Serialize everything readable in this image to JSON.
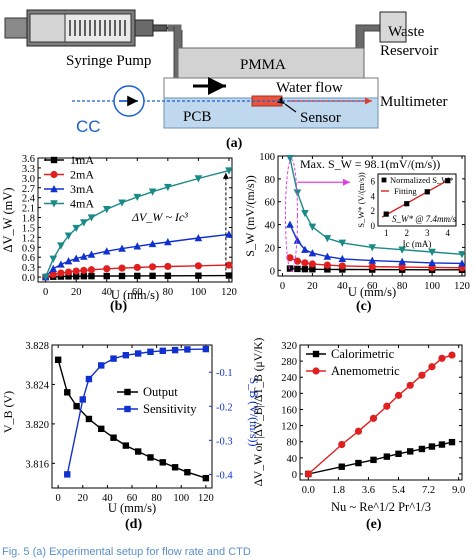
{
  "panel_a": {
    "labels": {
      "syringe_pump": "Syringe Pump",
      "pmma": "PMMA",
      "waste_reservoir_line1": "Waste",
      "waste_reservoir_line2": "Reservoir",
      "water_flow": "Water flow",
      "multimeter": "Multimeter",
      "cc": "CC",
      "pcb": "PCB",
      "sensor": "Sensor"
    },
    "colors": {
      "pcb": "#bfd8ee",
      "sensor": "#e8553c",
      "flow": "#1a5fd6",
      "wire": "#e23b2a"
    }
  },
  "panel_labels": [
    "(a)",
    "(b)",
    "(c)",
    "(d)",
    "(e)"
  ],
  "caption_fragment": "Fig. 5  (a) Experimental setup for flow rate and CTD",
  "chart_data": [
    {
      "panel": "(b)",
      "type": "line",
      "xlabel": "U (mm/s)",
      "ylabel": "ΔV_W (mV)",
      "xlim": [
        -5,
        122
      ],
      "ylim": [
        -0.15,
        3.6
      ],
      "xticks": [
        0,
        20,
        40,
        60,
        80,
        100,
        120
      ],
      "yticks": [
        "0.0",
        "0.3",
        "0.6",
        "0.9",
        "1.2",
        "1.5",
        "1.8",
        "2.1",
        "2.4",
        "2.7",
        "3.0",
        "3.3",
        "3.6"
      ],
      "annotation": "ΔV_W ~ Ic³",
      "legend_position": "top-left",
      "series": [
        {
          "name": "1mA",
          "color": "#000000",
          "marker": "square",
          "x": [
            0,
            5,
            10,
            15,
            20,
            25,
            30,
            40,
            50,
            60,
            70,
            80,
            100,
            120
          ],
          "y": [
            0,
            0.01,
            0.015,
            0.02,
            0.022,
            0.025,
            0.028,
            0.03,
            0.032,
            0.034,
            0.036,
            0.038,
            0.04,
            0.045
          ]
        },
        {
          "name": "2mA",
          "color": "#e02020",
          "marker": "circle",
          "x": [
            0,
            5,
            10,
            15,
            20,
            25,
            30,
            40,
            50,
            60,
            70,
            80,
            100,
            120
          ],
          "y": [
            0,
            0.08,
            0.12,
            0.15,
            0.18,
            0.2,
            0.22,
            0.25,
            0.27,
            0.29,
            0.31,
            0.32,
            0.34,
            0.36
          ]
        },
        {
          "name": "3mA",
          "color": "#1030d0",
          "marker": "triangle-up",
          "x": [
            0,
            5,
            10,
            15,
            20,
            25,
            30,
            40,
            50,
            60,
            70,
            80,
            100,
            120
          ],
          "y": [
            0,
            0.25,
            0.38,
            0.48,
            0.56,
            0.62,
            0.68,
            0.78,
            0.86,
            0.93,
            1.0,
            1.06,
            1.18,
            1.29
          ]
        },
        {
          "name": "4mA",
          "color": "#1a8a86",
          "marker": "triangle-down",
          "x": [
            0,
            5,
            10,
            15,
            20,
            25,
            30,
            40,
            50,
            60,
            70,
            80,
            100,
            120
          ],
          "y": [
            0,
            0.55,
            0.95,
            1.25,
            1.48,
            1.65,
            1.8,
            2.05,
            2.25,
            2.42,
            2.58,
            2.72,
            2.98,
            3.22
          ]
        }
      ]
    },
    {
      "panel": "(c)",
      "type": "line",
      "xlabel": "U (mm/s)",
      "ylabel": "S_W (mV/(m/s))",
      "xlim": [
        -3,
        122
      ],
      "ylim": [
        -5,
        100
      ],
      "xticks": [
        0,
        20,
        40,
        60,
        80,
        100,
        120
      ],
      "yticks": [
        0,
        20,
        40,
        60,
        80,
        100
      ],
      "annotation": "Max. S_W = 98.1(mV/(m/s))",
      "series": [
        {
          "name": "1mA",
          "color": "#000000",
          "marker": "square",
          "x": [
            5,
            10,
            15,
            20,
            30,
            40,
            60,
            80,
            100,
            120
          ],
          "y": [
            1.5,
            1.2,
            1.0,
            0.9,
            0.8,
            0.7,
            0.6,
            0.5,
            0.4,
            0.4
          ]
        },
        {
          "name": "2mA",
          "color": "#e02020",
          "marker": "circle",
          "x": [
            5,
            10,
            15,
            20,
            30,
            40,
            60,
            80,
            100,
            120
          ],
          "y": [
            11,
            8,
            6.5,
            5.5,
            4.5,
            3.8,
            3.2,
            2.8,
            2.5,
            2.2
          ]
        },
        {
          "name": "3mA",
          "color": "#1030d0",
          "marker": "triangle-up",
          "x": [
            5,
            10,
            15,
            20,
            30,
            40,
            60,
            80,
            100,
            120
          ],
          "y": [
            40,
            26,
            18,
            15,
            12,
            10,
            8.5,
            7.5,
            6.5,
            6
          ]
        },
        {
          "name": "4mA",
          "color": "#1a8a86",
          "marker": "triangle-down",
          "x": [
            5,
            10,
            15,
            20,
            30,
            40,
            60,
            80,
            100,
            120
          ],
          "y": [
            98.1,
            68,
            50,
            38,
            28,
            24,
            20,
            18,
            16,
            14
          ]
        }
      ],
      "inset": {
        "type": "line",
        "xlabel": "Ic (mA)",
        "ylabel": "S_W* (V/(m/s))",
        "xticks": [
          1,
          2,
          3,
          4
        ],
        "yticks": [
          0,
          2,
          4,
          6
        ],
        "legend": [
          "Normalized S_W*",
          "Fitting"
        ],
        "note": "S_W* @ 7.4mm/s",
        "x": [
          1,
          2,
          3,
          4
        ],
        "y": [
          1.6,
          3.0,
          4.6,
          6.1
        ]
      }
    },
    {
      "panel": "(d)",
      "type": "line",
      "xlabel": "U (mm/s)",
      "ylabel": "V_B (V)",
      "ylabel_right": "S_B (V/(m/s))",
      "xlim": [
        -5,
        125
      ],
      "ylim": [
        3.8135,
        3.828
      ],
      "ylim_right": [
        -0.44,
        -0.02
      ],
      "xticks": [
        0,
        20,
        40,
        60,
        80,
        100,
        120
      ],
      "yticks": [
        "3.816",
        "3.820",
        "3.824",
        "3.828"
      ],
      "yticks_right": [
        "-0.1",
        "-0.2",
        "-0.3",
        "-0.4"
      ],
      "legend_position": "center-right",
      "series": [
        {
          "name": "Output",
          "color": "#000000",
          "marker": "square",
          "axis": "left",
          "x": [
            0,
            7.4,
            15,
            25,
            35,
            45,
            55,
            65,
            75,
            85,
            95,
            105,
            120
          ],
          "y": [
            3.8265,
            3.8232,
            3.8218,
            3.8205,
            3.8195,
            3.8186,
            3.8178,
            3.8172,
            3.8166,
            3.8161,
            3.8156,
            3.8151,
            3.8145
          ]
        },
        {
          "name": "Sensitivity",
          "color": "#1030d0",
          "marker": "square",
          "axis": "right",
          "x": [
            7.4,
            20,
            25,
            35,
            45,
            55,
            65,
            75,
            85,
            95,
            105,
            120
          ],
          "y": [
            -0.4,
            -0.18,
            -0.12,
            -0.08,
            -0.06,
            -0.05,
            -0.045,
            -0.04,
            -0.037,
            -0.035,
            -0.033,
            -0.032
          ]
        }
      ]
    },
    {
      "panel": "(e)",
      "type": "line",
      "xlabel": "Nu ~ Re^1/2 Pr^1/3",
      "ylabel": "ΔV_W or |ΔV_B|/ΔT_B (μV/K)",
      "xlim": [
        -0.5,
        9.2
      ],
      "ylim": [
        -15,
        320
      ],
      "xticks": [
        "0.0",
        "1.8",
        "3.6",
        "5.4",
        "7.2",
        "9.0"
      ],
      "yticks": [
        0,
        40,
        80,
        120,
        160,
        200,
        240,
        280,
        320
      ],
      "legend_position": "top-left",
      "series": [
        {
          "name": "Calorimetric",
          "color": "#000000",
          "marker": "square",
          "x": [
            0,
            2.0,
            3.0,
            3.9,
            4.7,
            5.4,
            6.1,
            6.8,
            7.4,
            8.0,
            8.6
          ],
          "y": [
            0,
            18,
            27,
            35,
            43,
            50,
            56,
            62,
            68,
            73,
            79
          ]
        },
        {
          "name": "Anemometric",
          "color": "#e02020",
          "marker": "circle",
          "x": [
            0,
            2.0,
            3.0,
            3.9,
            4.7,
            5.4,
            6.1,
            6.8,
            7.4,
            8.0,
            8.6
          ],
          "y": [
            0,
            73,
            106,
            138,
            168,
            195,
            220,
            245,
            266,
            287,
            295
          ]
        }
      ]
    }
  ]
}
